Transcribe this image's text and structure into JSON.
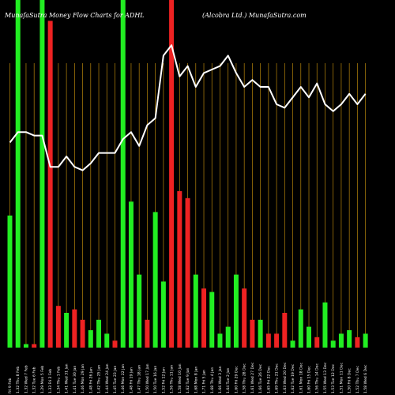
{
  "chart_data": {
    "type": "bar",
    "title": "MunafaSutra  Money Flow  Charts for ADHL",
    "subtitle": "(Alcobra  Ltd.) MunafaSutra.com",
    "colors": {
      "background": "#000000",
      "up": "#22ee22",
      "down": "#ee2222",
      "line": "#ffffff",
      "grid": "#b8860b"
    },
    "grid": "vertical-lines",
    "ylim": [
      0,
      100
    ],
    "categories": [
      "Fri 09 Feb",
      "Thu 08 Feb",
      "Wed 07 Feb",
      "Tue 06 Feb",
      "Mon 05 Feb",
      "Fri 02 Feb",
      "Thu 01 Feb",
      "Wed 31 Jan",
      "Tue 30 Jan",
      "Mon 29 Jan",
      "Fri 26 Jan",
      "Thu 25 Jan",
      "Wed 24 Jan",
      "Tue 23 Jan",
      "Mon 22 Jan",
      "Fri 19 Jan",
      "Thu 18 Jan",
      "Wed 17 Jan",
      "Tue 16 Jan",
      "Fri 12 Jan",
      "Thu 11 Jan",
      "Wed 10 Jan",
      "Tue 09 Jan",
      "Mon 08 Jan",
      "Fri 05 Jan",
      "Thu 04 Jan",
      "Wed 03 Jan",
      "Tue 02 Jan",
      "Fri 29 Dec",
      "Thu 28 Dec",
      "Wed 27 Dec",
      "Tue 26 Dec",
      "Fri 22 Dec",
      "Thu 21 Dec",
      "Wed 20 Dec",
      "Tue 19 Dec",
      "Mon 18 Dec",
      "Fri 15 Dec",
      "Thu 14 Dec",
      "Wed 13 Dec",
      "Tue 12 Dec",
      "Mon 11 Dec",
      "Fri 08 Dec",
      "Thu 07 Dec",
      "Wed 06 Dec"
    ],
    "tick_labels": [
      "Fri 9 Feb",
      "1.32 Thu 8 Feb",
      "1.32 Wed 7 Feb",
      "1.32 Tue 6 Feb",
      "1.29 Mon 5 Feb",
      "1.33 Fri 2 Feb",
      "1.34 Thu 1 Feb",
      "1.41 Wed 31 Jan",
      "1.41 Tue 30 Jan",
      "1.46 Mon 29 Jan",
      "1.48 Fri 26 Jan",
      "1.42 Thu 25 Jan",
      "1.44 Wed 24 Jan",
      "1.45 Tue 23 Jan",
      "1.46 Mon 22 Jan",
      "1.48 Fri 19 Jan",
      "1.47 Thu 18 Jan",
      "1.50 Wed 17 Jan",
      "1.50 Tue 16 Jan",
      "1.52 Fri 12 Jan",
      "1.56 Thu 11 Jan",
      "1.58 Wed 10 Jan",
      "1.62 Tue 9 Jan",
      "1.68 Mon 8 Jan",
      "1.71 Fri 5 Jan",
      "1.68 Thu 4 Jan",
      "1.66 Wed 3 Jan",
      "1.64 Tue 2 Jan",
      "1.60 Fri 29 Dec",
      "1.58 Thu 28 Dec",
      "1.61 Wed 27 Dec",
      "1.66 Tue 26 Dec",
      "1.65 Fri 22 Dec",
      "1.69 Thu 21 Dec",
      "1.63 Wed 20 Dec",
      "1.62 Tue 19 Dec",
      "1.61 Mon 18 Dec",
      "1.60 Fri 15 Dec",
      "1.56 Thu 14 Dec",
      "1.55 Wed 13 Dec",
      "1.53 Tue 12 Dec",
      "1.51 Mon 11 Dec",
      "1.50 Fri 8 Dec",
      "1.52 Thu 7 Dec",
      "1.58 Wed 6 Dec"
    ],
    "series": [
      {
        "name": "money_flow_volume",
        "values": [
          38,
          100,
          1,
          1,
          100,
          94,
          12,
          10,
          11,
          8,
          5,
          8,
          4,
          2,
          100,
          42,
          21,
          8,
          39,
          19,
          100,
          45,
          43,
          21,
          17,
          16,
          4,
          6,
          21,
          17,
          8,
          8,
          4,
          4,
          10,
          2,
          11,
          6,
          3,
          13,
          2,
          4,
          5,
          3,
          4
        ],
        "direction": [
          "up",
          "up",
          "up",
          "down",
          "up",
          "down",
          "down",
          "up",
          "down",
          "down",
          "up",
          "up",
          "up",
          "down",
          "up",
          "up",
          "up",
          "down",
          "up",
          "up",
          "down",
          "down",
          "down",
          "up",
          "down",
          "up",
          "up",
          "up",
          "up",
          "down",
          "down",
          "up",
          "down",
          "down",
          "down",
          "up",
          "up",
          "up",
          "down",
          "up",
          "up",
          "up",
          "up",
          "down",
          "up"
        ]
      },
      {
        "name": "price_line",
        "values": [
          59,
          62,
          62,
          61,
          61,
          52,
          52,
          55,
          52,
          51,
          53,
          56,
          56,
          56,
          60,
          62,
          58,
          64,
          66,
          84,
          87,
          78,
          81,
          75,
          79,
          80,
          81,
          84,
          79,
          75,
          77,
          75,
          75,
          70,
          69,
          72,
          75,
          72,
          76,
          70,
          68,
          70,
          73,
          70,
          73
        ]
      }
    ]
  }
}
